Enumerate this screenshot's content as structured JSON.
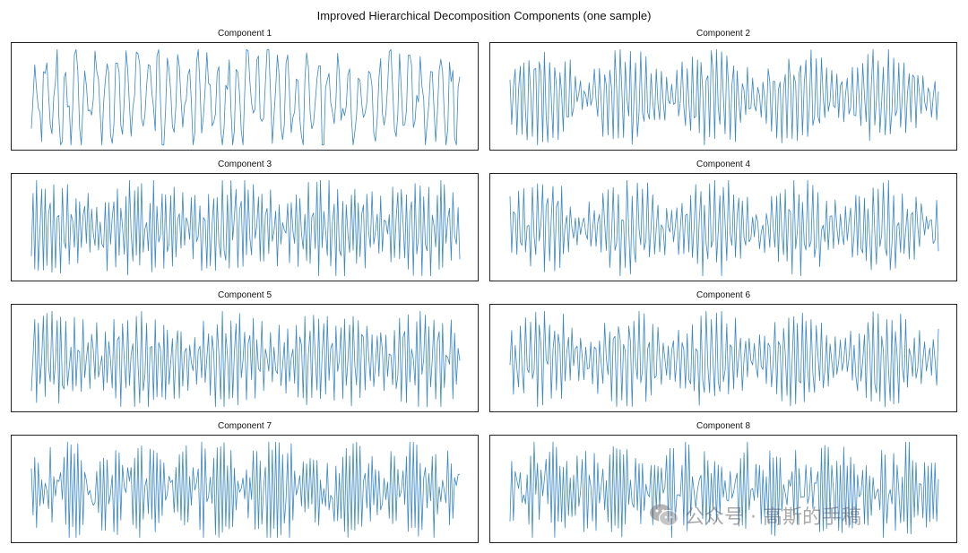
{
  "figure": {
    "suptitle": "Improved Hierarchical Decomposition Components (one sample)",
    "line_color": "#3b87c4",
    "watermark": {
      "icon": "wechat-icon",
      "text": "公众号 · 高斯的手稿"
    }
  },
  "chart_data": [
    {
      "type": "line",
      "title": "Component 1",
      "n_points": 250,
      "amplitude": 1.0,
      "base_period": 6.0,
      "envelope": "irregular",
      "axes_visible": false
    },
    {
      "type": "line",
      "title": "Component 2",
      "n_points": 250,
      "amplitude": 1.0,
      "base_period": 3.0,
      "envelope": "bursts",
      "axes_visible": false
    },
    {
      "type": "line",
      "title": "Component 3",
      "n_points": 250,
      "amplitude": 1.0,
      "base_period": 2.5,
      "envelope": "mild",
      "axes_visible": false
    },
    {
      "type": "line",
      "title": "Component 4",
      "n_points": 250,
      "amplitude": 1.0,
      "base_period": 2.8,
      "envelope": "bursts",
      "axes_visible": false
    },
    {
      "type": "line",
      "title": "Component 5",
      "n_points": 250,
      "amplitude": 1.0,
      "base_period": 2.6,
      "envelope": "mild",
      "axes_visible": false
    },
    {
      "type": "line",
      "title": "Component 6",
      "n_points": 250,
      "amplitude": 1.0,
      "base_period": 2.8,
      "envelope": "bursts",
      "axes_visible": false
    },
    {
      "type": "line",
      "title": "Component 7",
      "n_points": 250,
      "amplitude": 1.0,
      "base_period": 2.2,
      "envelope": "dense",
      "axes_visible": false
    },
    {
      "type": "line",
      "title": "Component 8",
      "n_points": 250,
      "amplitude": 1.0,
      "base_period": 2.2,
      "envelope": "dense",
      "axes_visible": false
    }
  ]
}
